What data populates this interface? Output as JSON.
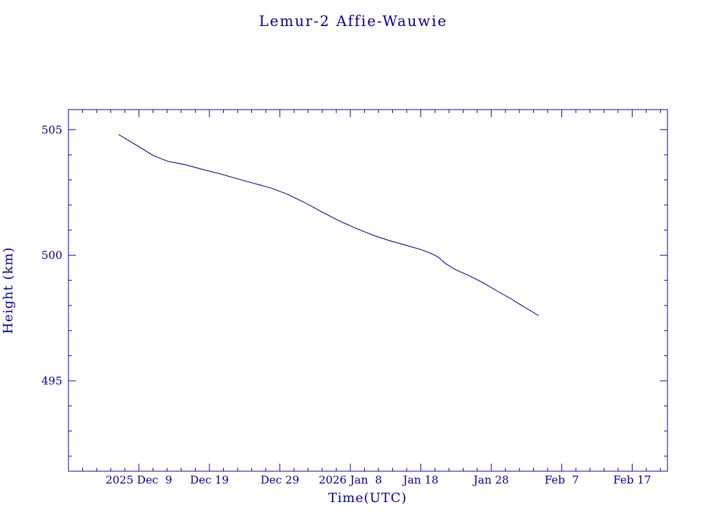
{
  "page": {
    "background": "#ffffff"
  },
  "chart_data": {
    "type": "line",
    "title": "Lemur-2 Affie-Wauwie",
    "xlabel": "Time(UTC)",
    "ylabel": "Height (km)",
    "axis_color": "#000099",
    "line_color": "#000099",
    "grid": false,
    "legend": "none",
    "x_units": "days, 0 = 2025 Nov 29",
    "xlim": [
      0,
      85
    ],
    "ylim": [
      491.4,
      505.8
    ],
    "x_minor_step": 2,
    "y_minor_step": 1,
    "x_ticks": [
      {
        "pos": 10,
        "label": "2025 Dec  9"
      },
      {
        "pos": 20,
        "label": "Dec 19"
      },
      {
        "pos": 30,
        "label": "Dec 29"
      },
      {
        "pos": 40,
        "label": "2026 Jan  8"
      },
      {
        "pos": 50,
        "label": "Jan 18"
      },
      {
        "pos": 60,
        "label": "Jan 28"
      },
      {
        "pos": 70,
        "label": "Feb  7"
      },
      {
        "pos": 80,
        "label": "Feb 17"
      }
    ],
    "y_ticks": [
      {
        "pos": 495,
        "label": "495"
      },
      {
        "pos": 500,
        "label": "500"
      },
      {
        "pos": 505,
        "label": "505"
      }
    ],
    "series": [
      {
        "name": "Lemur-2 Affie-Wauwie orbital height (km)",
        "points": [
          [
            7.1,
            504.81
          ],
          [
            9.7,
            504.37
          ],
          [
            12.1,
            503.96
          ],
          [
            14.1,
            503.74
          ],
          [
            16.5,
            503.61
          ],
          [
            19.0,
            503.42
          ],
          [
            21.4,
            503.25
          ],
          [
            23.8,
            503.06
          ],
          [
            26.2,
            502.87
          ],
          [
            28.7,
            502.68
          ],
          [
            31.1,
            502.43
          ],
          [
            33.5,
            502.1
          ],
          [
            36.0,
            501.72
          ],
          [
            38.4,
            501.37
          ],
          [
            40.8,
            501.07
          ],
          [
            43.3,
            500.79
          ],
          [
            45.7,
            500.57
          ],
          [
            48.1,
            500.38
          ],
          [
            50.1,
            500.22
          ],
          [
            51.8,
            500.03
          ],
          [
            52.5,
            499.92
          ],
          [
            53.5,
            499.67
          ],
          [
            54.9,
            499.43
          ],
          [
            56.9,
            499.18
          ],
          [
            58.8,
            498.91
          ],
          [
            60.8,
            498.58
          ],
          [
            62.7,
            498.28
          ],
          [
            64.6,
            497.95
          ],
          [
            66.7,
            497.6
          ]
        ]
      }
    ]
  }
}
